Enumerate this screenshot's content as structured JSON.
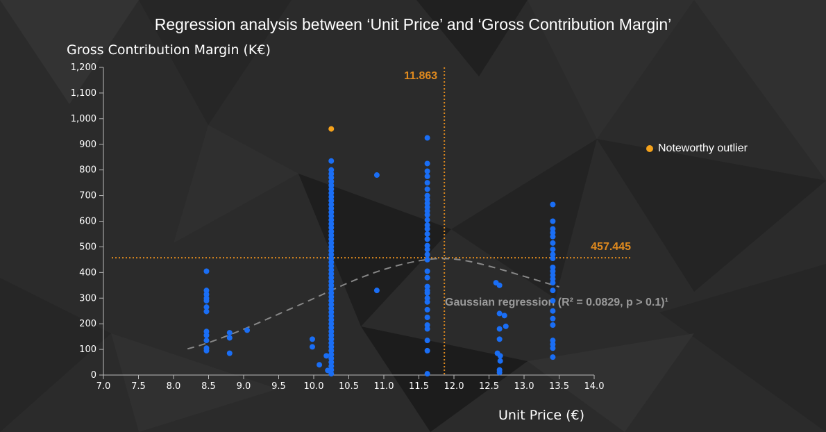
{
  "title": "Regression analysis between ‘Unit Price’ and ‘Gross Contribution Margin’",
  "colors": {
    "background": "#2b2b2b",
    "points": "#1a6ef5",
    "outlier": "#f5a21b",
    "reference_lines": "#e08a1e",
    "regression_curve": "#888888",
    "axis": "#bbbbbb"
  },
  "legend": {
    "outlier_label": "Noteworthy outlier"
  },
  "chart_data": {
    "type": "scatter",
    "title": "Regression analysis between ‘Unit Price’ and ‘Gross Contribution Margin’",
    "xlabel": "Unit Price (€)",
    "ylabel": "Gross Contribution Margin (K€)",
    "xlim": [
      7.0,
      14.0
    ],
    "ylim": [
      0,
      1200
    ],
    "x_ticks": [
      "7.0",
      "7.5",
      "8.0",
      "8.5",
      "9.0",
      "9.5",
      "10.0",
      "10.5",
      "11.0",
      "11.5",
      "12.0",
      "12.5",
      "13.0",
      "13.5",
      "14.0"
    ],
    "y_ticks": [
      "0",
      "100",
      "200",
      "300",
      "400",
      "500",
      "600",
      "700",
      "800",
      "900",
      "1,000",
      "1,100",
      "1,200"
    ],
    "grid": false,
    "legend_position": "right",
    "reference_lines": {
      "x": 11.863,
      "x_label": "11.863",
      "y": 457.445,
      "y_label": "457.445"
    },
    "regression": {
      "label": "Gaussian regression (R² = 0.0829, p > 0.1)¹",
      "curve": [
        [
          8.2,
          102
        ],
        [
          8.5,
          125
        ],
        [
          9.0,
          178
        ],
        [
          9.5,
          238
        ],
        [
          10.0,
          298
        ],
        [
          10.5,
          362
        ],
        [
          11.0,
          414
        ],
        [
          11.5,
          448
        ],
        [
          11.863,
          457
        ],
        [
          12.2,
          446
        ],
        [
          12.6,
          418
        ],
        [
          13.0,
          385
        ],
        [
          13.5,
          344
        ]
      ]
    },
    "series": [
      {
        "name": "Noteworthy outlier",
        "color": "#f5a21b",
        "points": [
          [
            10.25,
            960
          ]
        ]
      },
      {
        "color": "#1a6ef5",
        "points": [
          [
            8.47,
            405
          ],
          [
            8.47,
            330
          ],
          [
            8.47,
            315
          ],
          [
            8.47,
            300
          ],
          [
            8.47,
            290
          ],
          [
            8.47,
            265
          ],
          [
            8.47,
            248
          ],
          [
            8.47,
            170
          ],
          [
            8.47,
            155
          ],
          [
            8.47,
            135
          ],
          [
            8.47,
            105
          ],
          [
            8.47,
            95
          ],
          [
            8.8,
            165
          ],
          [
            8.8,
            145
          ],
          [
            8.8,
            85
          ],
          [
            9.05,
            175
          ],
          [
            9.98,
            140
          ],
          [
            9.98,
            110
          ],
          [
            10.08,
            40
          ],
          [
            10.18,
            75
          ],
          [
            10.2,
            18
          ],
          [
            10.25,
            835
          ],
          [
            10.25,
            800
          ],
          [
            10.25,
            785
          ],
          [
            10.25,
            770
          ],
          [
            10.25,
            755
          ],
          [
            10.25,
            740
          ],
          [
            10.25,
            725
          ],
          [
            10.25,
            710
          ],
          [
            10.25,
            695
          ],
          [
            10.25,
            680
          ],
          [
            10.25,
            665
          ],
          [
            10.25,
            650
          ],
          [
            10.25,
            635
          ],
          [
            10.25,
            620
          ],
          [
            10.25,
            605
          ],
          [
            10.25,
            590
          ],
          [
            10.25,
            575
          ],
          [
            10.25,
            560
          ],
          [
            10.25,
            545
          ],
          [
            10.25,
            530
          ],
          [
            10.25,
            515
          ],
          [
            10.25,
            500
          ],
          [
            10.25,
            485
          ],
          [
            10.25,
            470
          ],
          [
            10.25,
            455
          ],
          [
            10.25,
            440
          ],
          [
            10.25,
            425
          ],
          [
            10.25,
            410
          ],
          [
            10.25,
            395
          ],
          [
            10.25,
            380
          ],
          [
            10.25,
            365
          ],
          [
            10.25,
            350
          ],
          [
            10.25,
            335
          ],
          [
            10.25,
            320
          ],
          [
            10.25,
            305
          ],
          [
            10.25,
            290
          ],
          [
            10.25,
            275
          ],
          [
            10.25,
            260
          ],
          [
            10.25,
            245
          ],
          [
            10.25,
            230
          ],
          [
            10.25,
            215
          ],
          [
            10.25,
            200
          ],
          [
            10.25,
            185
          ],
          [
            10.25,
            170
          ],
          [
            10.25,
            155
          ],
          [
            10.25,
            140
          ],
          [
            10.25,
            125
          ],
          [
            10.25,
            110
          ],
          [
            10.25,
            95
          ],
          [
            10.25,
            80
          ],
          [
            10.25,
            65
          ],
          [
            10.25,
            50
          ],
          [
            10.25,
            35
          ],
          [
            10.25,
            20
          ],
          [
            10.25,
            5
          ],
          [
            10.9,
            780
          ],
          [
            10.9,
            330
          ],
          [
            11.62,
            925
          ],
          [
            11.62,
            825
          ],
          [
            11.62,
            795
          ],
          [
            11.62,
            775
          ],
          [
            11.62,
            750
          ],
          [
            11.62,
            725
          ],
          [
            11.62,
            700
          ],
          [
            11.62,
            685
          ],
          [
            11.62,
            670
          ],
          [
            11.62,
            655
          ],
          [
            11.62,
            640
          ],
          [
            11.62,
            625
          ],
          [
            11.62,
            605
          ],
          [
            11.62,
            585
          ],
          [
            11.62,
            570
          ],
          [
            11.62,
            550
          ],
          [
            11.62,
            530
          ],
          [
            11.62,
            505
          ],
          [
            11.62,
            490
          ],
          [
            11.62,
            470
          ],
          [
            11.62,
            450
          ],
          [
            11.62,
            405
          ],
          [
            11.62,
            380
          ],
          [
            11.62,
            345
          ],
          [
            11.62,
            330
          ],
          [
            11.62,
            320
          ],
          [
            11.62,
            300
          ],
          [
            11.62,
            285
          ],
          [
            11.62,
            255
          ],
          [
            11.62,
            225
          ],
          [
            11.62,
            195
          ],
          [
            11.62,
            180
          ],
          [
            11.62,
            135
          ],
          [
            11.62,
            95
          ],
          [
            11.62,
            5
          ],
          [
            12.6,
            360
          ],
          [
            12.65,
            350
          ],
          [
            12.65,
            240
          ],
          [
            12.65,
            180
          ],
          [
            12.65,
            140
          ],
          [
            12.62,
            85
          ],
          [
            12.66,
            75
          ],
          [
            12.66,
            55
          ],
          [
            12.65,
            20
          ],
          [
            12.65,
            10
          ],
          [
            12.72,
            232
          ],
          [
            12.74,
            190
          ],
          [
            13.41,
            665
          ],
          [
            13.41,
            600
          ],
          [
            13.41,
            570
          ],
          [
            13.41,
            555
          ],
          [
            13.41,
            540
          ],
          [
            13.41,
            515
          ],
          [
            13.41,
            490
          ],
          [
            13.41,
            470
          ],
          [
            13.41,
            455
          ],
          [
            13.41,
            420
          ],
          [
            13.41,
            405
          ],
          [
            13.41,
            390
          ],
          [
            13.41,
            375
          ],
          [
            13.41,
            360
          ],
          [
            13.41,
            330
          ],
          [
            13.41,
            290
          ],
          [
            13.41,
            250
          ],
          [
            13.41,
            220
          ],
          [
            13.41,
            195
          ],
          [
            13.41,
            135
          ],
          [
            13.41,
            120
          ],
          [
            13.41,
            105
          ],
          [
            13.41,
            70
          ]
        ]
      }
    ]
  }
}
